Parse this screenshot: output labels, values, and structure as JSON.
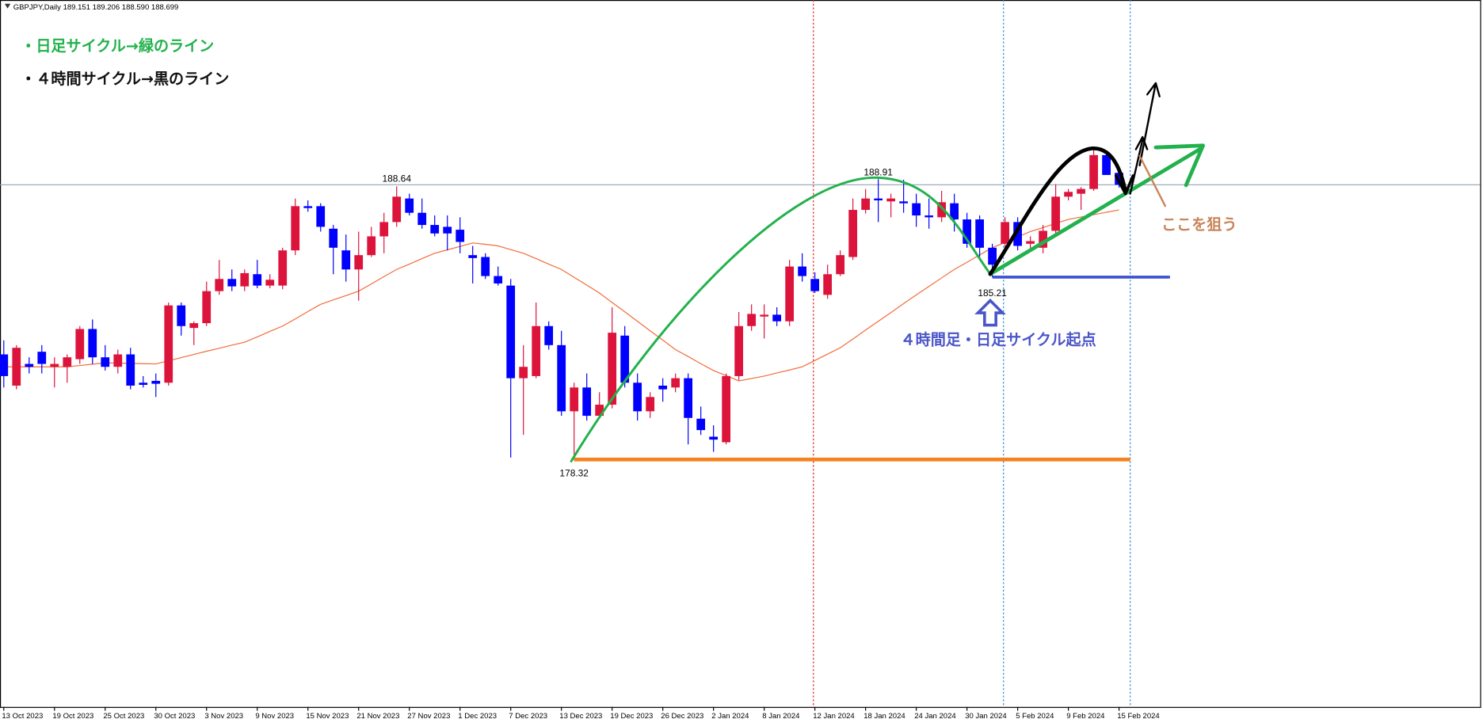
{
  "chart_data": {
    "type": "candlestick",
    "title": "GBPJPY,Daily  189.151 189.206 188.590 188.699",
    "categories": [
      "13 Oct 2023",
      null,
      null,
      null,
      "19 Oct 2023",
      null,
      null,
      null,
      "25 Oct 2023",
      null,
      null,
      null,
      "30 Oct 2023",
      null,
      null,
      null,
      "3 Nov 2023",
      null,
      null,
      null,
      "9 Nov 2023",
      null,
      null,
      null,
      "15 Nov 2023",
      null,
      null,
      null,
      "21 Nov 2023",
      null,
      null,
      null,
      "27 Nov 2023",
      null,
      null,
      null,
      "1 Dec 2023",
      null,
      null,
      null,
      "7 Dec 2023",
      null,
      null,
      null,
      "13 Dec 2023",
      null,
      null,
      null,
      "19 Dec 2023",
      null,
      null,
      null,
      "26 Dec 2023",
      null,
      null,
      null,
      "2 Jan 2024",
      null,
      null,
      null,
      "8 Jan 2024",
      null,
      null,
      null,
      "12 Jan 2024",
      null,
      null,
      null,
      "18 Jan 2024",
      null,
      null,
      null,
      "24 Jan 2024",
      null,
      null,
      null,
      "30 Jan 2024",
      null,
      null,
      null,
      "5 Feb 2024",
      null,
      null,
      null,
      "9 Feb 2024",
      null,
      null,
      null,
      "15 Feb 2024"
    ],
    "open": [
      182.29,
      181.11,
      181.93,
      182.39,
      181.82,
      181.82,
      182.11,
      183.25,
      182.18,
      181.82,
      182.29,
      181.22,
      181.29,
      181.22,
      184.14,
      183.29,
      183.47,
      184.68,
      185.14,
      184.86,
      185.32,
      184.89,
      184.89,
      186.22,
      187.89,
      187.89,
      187.04,
      186.22,
      185.5,
      186.04,
      186.75,
      187.29,
      188.18,
      187.64,
      187.18,
      187.11,
      187.0,
      186.04,
      185.97,
      185.25,
      184.89,
      181.39,
      181.47,
      183.36,
      182.64,
      180.14,
      181.04,
      179.97,
      180.39,
      183.0,
      181.22,
      180.14,
      181.11,
      181.04,
      181.39,
      179.86,
      179.18,
      178.97,
      181.47,
      183.36,
      183.72,
      183.79,
      183.54,
      185.61,
      185.14,
      184.54,
      185.32,
      185.97,
      187.75,
      188.18,
      188.07,
      188.07,
      188.0,
      187.54,
      187.47,
      188.0,
      187.39,
      187.39,
      186.32,
      186.47,
      187.29,
      186.47,
      186.32,
      186.96,
      188.25,
      188.36,
      188.54,
      189.82,
      189.151
    ],
    "high": [
      182.82,
      182.64,
      182.18,
      182.64,
      182.18,
      182.29,
      183.36,
      183.61,
      182.64,
      182.47,
      182.54,
      181.47,
      181.57,
      184.25,
      184.25,
      183.54,
      185.04,
      185.86,
      185.5,
      185.5,
      185.86,
      185.32,
      186.32,
      188.18,
      188.11,
      188.0,
      187.18,
      186.82,
      186.93,
      187.11,
      187.64,
      188.64,
      188.36,
      188.18,
      187.54,
      187.54,
      187.47,
      186.39,
      186.11,
      185.61,
      185.14,
      182.64,
      184.25,
      183.54,
      183.18,
      181.22,
      181.57,
      180.86,
      184.07,
      183.36,
      181.57,
      180.86,
      181.39,
      181.57,
      181.57,
      180.32,
      179.61,
      181.57,
      183.89,
      184.18,
      184.18,
      184.07,
      185.86,
      186.11,
      185.39,
      185.68,
      186.22,
      188.18,
      188.54,
      188.91,
      188.36,
      188.89,
      188.36,
      188.18,
      188.47,
      188.36,
      187.64,
      187.54,
      186.47,
      187.47,
      187.47,
      186.75,
      187.18,
      188.72,
      188.54,
      188.61,
      190.14,
      189.97,
      189.206
    ],
    "low": [
      181.04,
      180.97,
      181.57,
      181.57,
      181.04,
      181.22,
      181.93,
      181.93,
      181.68,
      181.57,
      180.97,
      181.04,
      180.68,
      181.11,
      183.0,
      182.64,
      183.36,
      184.54,
      184.68,
      184.68,
      184.79,
      184.79,
      184.75,
      186.04,
      187.68,
      186.93,
      185.32,
      185.04,
      184.32,
      185.97,
      186.11,
      187.11,
      187.54,
      187.04,
      186.75,
      186.22,
      186.11,
      184.97,
      185.14,
      184.89,
      178.39,
      179.25,
      181.39,
      182.47,
      179.97,
      178.32,
      179.79,
      179.89,
      180.25,
      181.04,
      179.79,
      179.89,
      180.5,
      180.86,
      178.89,
      179.25,
      178.61,
      178.89,
      181.32,
      183.18,
      182.89,
      183.36,
      183.36,
      185.04,
      184.61,
      184.39,
      185.25,
      185.86,
      187.61,
      187.29,
      187.47,
      187.64,
      187.11,
      187.04,
      187.29,
      186.93,
      186.32,
      185.97,
      185.21,
      186.11,
      186.22,
      186.22,
      186.11,
      186.82,
      188.11,
      187.75,
      188.47,
      189.07,
      188.59
    ],
    "close": [
      181.47,
      182.54,
      181.82,
      181.93,
      181.93,
      182.18,
      183.25,
      182.18,
      181.82,
      182.29,
      181.11,
      181.14,
      181.18,
      184.14,
      183.36,
      183.47,
      184.68,
      185.14,
      184.86,
      185.36,
      184.89,
      185.11,
      186.22,
      187.89,
      187.82,
      187.11,
      186.32,
      185.5,
      186.04,
      186.75,
      187.29,
      188.25,
      187.64,
      187.18,
      186.86,
      186.86,
      186.54,
      185.93,
      185.25,
      184.97,
      181.39,
      181.82,
      183.36,
      182.64,
      180.14,
      181.04,
      179.97,
      180.39,
      183.11,
      181.22,
      180.14,
      180.68,
      180.97,
      181.39,
      179.89,
      179.43,
      179.07,
      181.47,
      183.36,
      183.82,
      183.79,
      183.54,
      185.61,
      185.25,
      184.68,
      185.32,
      186.04,
      187.75,
      188.18,
      188.11,
      188.18,
      188.0,
      187.54,
      187.47,
      188.04,
      187.39,
      186.47,
      186.32,
      185.68,
      187.29,
      186.39,
      186.57,
      186.96,
      188.25,
      188.43,
      188.54,
      189.82,
      189.07,
      188.699
    ],
    "ma": [
      181.82,
      181.82,
      181.82,
      181.82,
      181.82,
      181.82,
      181.87,
      181.92,
      181.97,
      181.96,
      181.95,
      181.94,
      181.93,
      182.05,
      182.17,
      182.29,
      182.41,
      182.52,
      182.64,
      182.75,
      182.95,
      183.16,
      183.36,
      183.63,
      183.91,
      184.18,
      184.35,
      184.51,
      184.68,
      184.95,
      185.23,
      185.5,
      185.7,
      185.91,
      186.11,
      186.24,
      186.37,
      186.5,
      186.45,
      186.39,
      186.25,
      186.11,
      185.91,
      185.7,
      185.5,
      185.2,
      184.91,
      184.61,
      184.25,
      183.9,
      183.54,
      183.18,
      182.83,
      182.47,
      182.21,
      181.94,
      181.68,
      181.49,
      181.29,
      181.38,
      181.47,
      181.59,
      181.7,
      181.82,
      182.06,
      182.3,
      182.54,
      182.87,
      183.21,
      183.54,
      183.87,
      184.21,
      184.54,
      184.86,
      185.18,
      185.5,
      185.77,
      186.05,
      186.32,
      186.52,
      186.73,
      186.93,
      187.08,
      187.24,
      187.39,
      187.48,
      187.57,
      187.66,
      187.75
    ],
    "up_color": "#dc143c",
    "down_color": "#0000ff",
    "ma_color": "#f26b3a",
    "ylim": [
      168.97,
      195.68
    ],
    "annotations": [
      {
        "text": "・日足サイクル→緑のライン",
        "color": "#22b14c"
      },
      {
        "text": "・４時間サイクル→黒のライン",
        "color": "#111111"
      },
      {
        "text": "４時間足・日足サイクル起点",
        "color": "#4a55c8"
      },
      {
        "text": "ここを狙う",
        "color": "#c8845a"
      }
    ]
  }
}
